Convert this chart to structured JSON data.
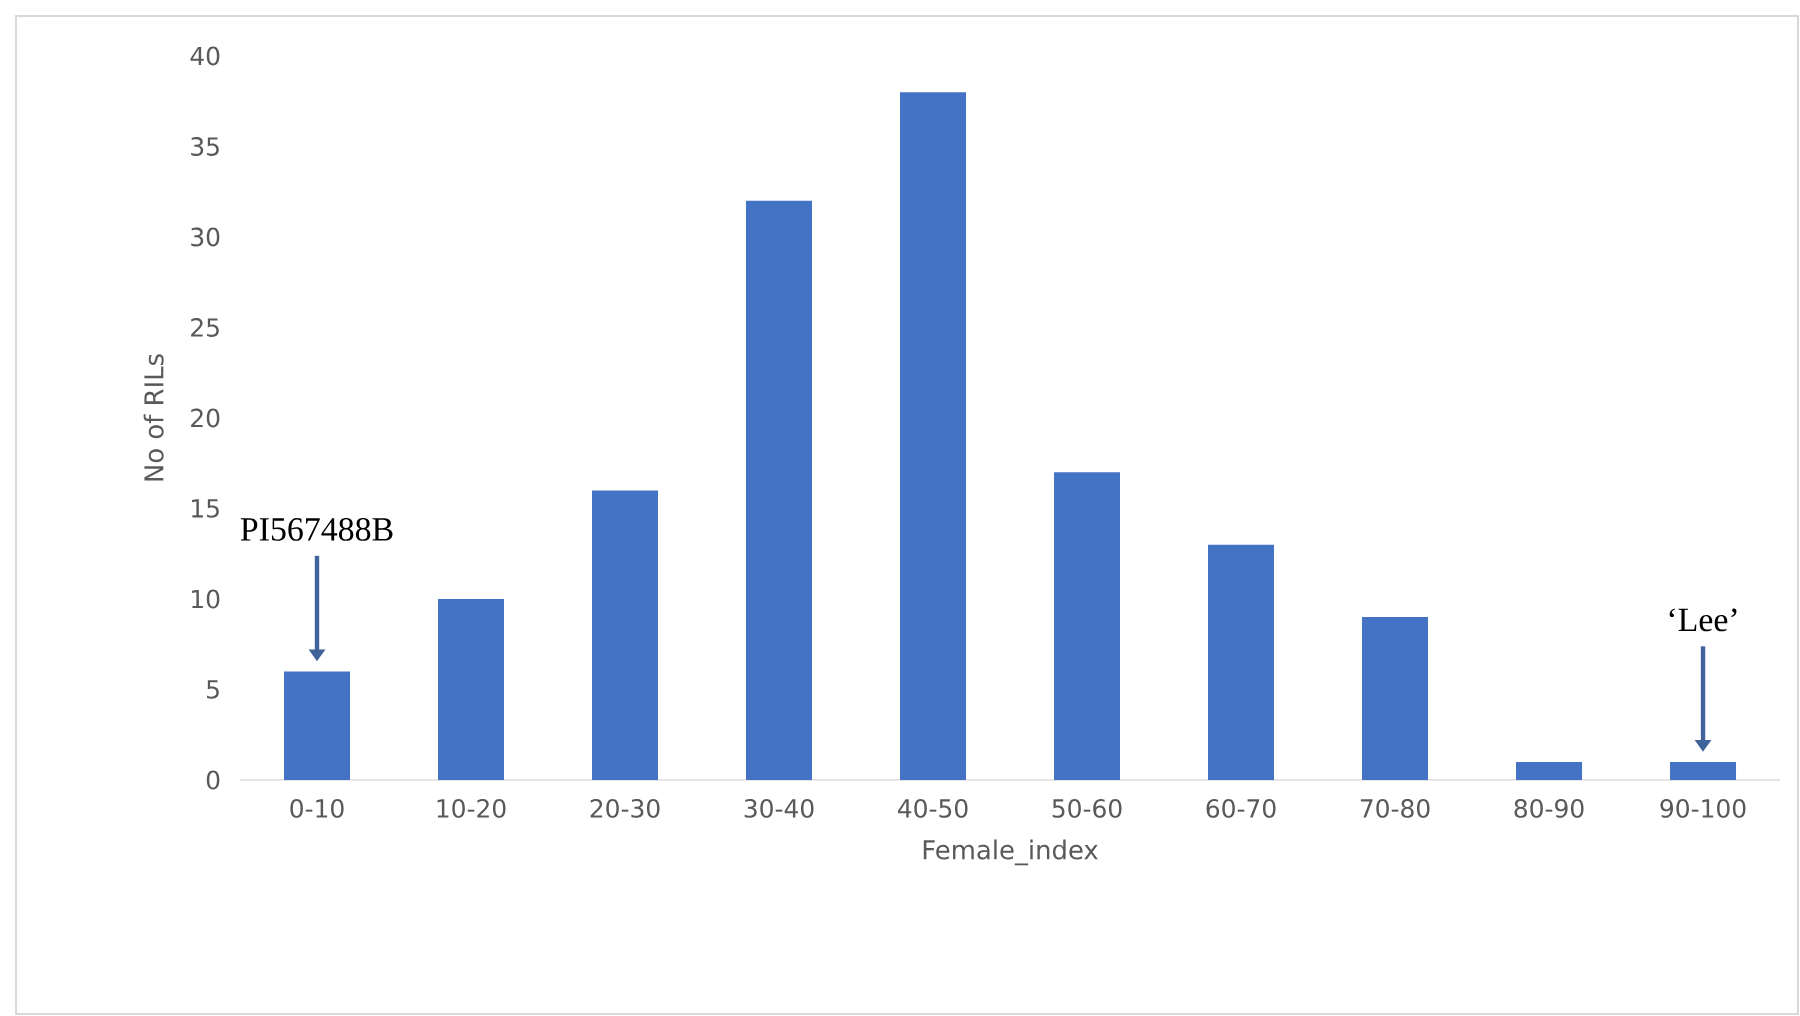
{
  "chart_data": {
    "type": "bar",
    "xlabel": "Female_index",
    "ylabel": "No of RILs",
    "categories": [
      "0-10",
      "10-20",
      "20-30",
      "30-40",
      "40-50",
      "50-60",
      "60-70",
      "70-80",
      "80-90",
      "90-100"
    ],
    "values": [
      6,
      10,
      16,
      32,
      38,
      17,
      13,
      9,
      1,
      1
    ],
    "color": "#4472c4",
    "ylim": [
      0,
      40
    ],
    "yticks": [
      0,
      5,
      10,
      15,
      20,
      25,
      30,
      35,
      40
    ],
    "annotations": [
      "PI567488B",
      "‘Lee’"
    ]
  }
}
